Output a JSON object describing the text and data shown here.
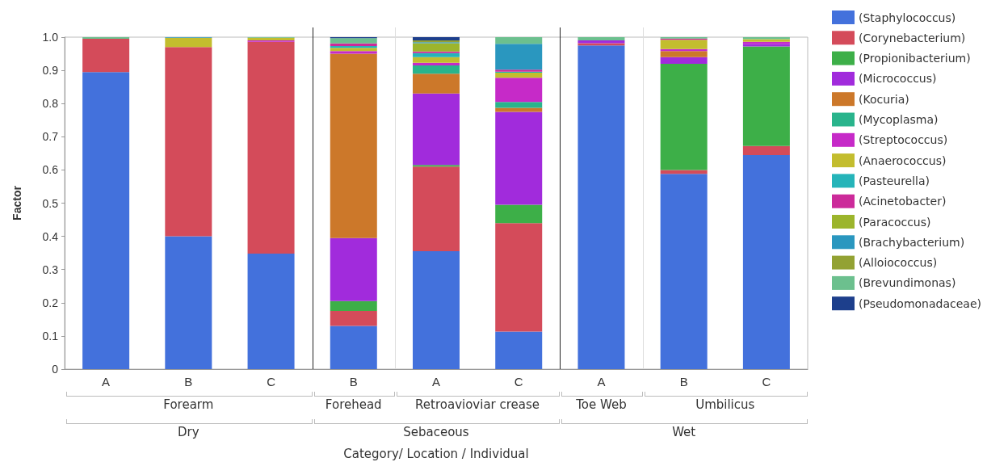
{
  "chart_data": {
    "type": "bar",
    "stacked": true,
    "xlabel": "Category/ Location / Individual",
    "ylabel": "Factor",
    "categories": [
      "A",
      "B",
      "C",
      "B",
      "A",
      "C",
      "A",
      "B",
      "C"
    ],
    "annotations": [
      "Forearm",
      "Forehead",
      "Retroavioviar crease",
      "Toe Web",
      "Umbilicus",
      "Dry",
      "Sebaceous",
      "Wet"
    ],
    "ylim": [
      0,
      1
    ],
    "yticks": [
      0,
      0.1,
      0.2,
      0.3,
      0.4,
      0.5,
      0.6,
      0.7,
      0.8,
      0.9,
      {
        "value": 1,
        "label": "1.0"
      }
    ],
    "grid": false,
    "legend": "right",
    "series": [
      {
        "name": "(Staphylococcus)",
        "color": "#4371dc",
        "values": [
          0.895,
          0.4,
          0.348,
          0.13,
          0.355,
          0.113,
          0.975,
          0.588,
          0.645
        ]
      },
      {
        "name": "(Corynebacterium)",
        "color": "#d44b5a",
        "values": [
          0.1,
          0.57,
          0.638,
          0.045,
          0.255,
          0.327,
          0.007,
          0.012,
          0.027
        ]
      },
      {
        "name": "(Propionibacterium)",
        "color": "#3daf48",
        "values": [
          null,
          null,
          null,
          0.03,
          0.005,
          0.055,
          null,
          0.32,
          0.3
        ]
      },
      {
        "name": "(Micrococcus)",
        "color": "#a12bdc",
        "values": [
          null,
          null,
          null,
          0.19,
          0.215,
          0.28,
          0.008,
          0.02,
          0.008
        ]
      },
      {
        "name": "(Kocuria)",
        "color": "#cc782a",
        "values": [
          null,
          null,
          null,
          0.555,
          0.06,
          0.012,
          null,
          0.018,
          null
        ]
      },
      {
        "name": "(Mycoplasma)",
        "color": "#29b48c",
        "values": [
          null,
          null,
          null,
          null,
          0.025,
          0.018,
          null,
          null,
          null
        ]
      },
      {
        "name": "(Streptococcus)",
        "color": "#c62ac8",
        "values": [
          null,
          null,
          0.004,
          0.008,
          0.008,
          0.073,
          null,
          0.006,
          0.006
        ]
      },
      {
        "name": "(Anaerococcus)",
        "color": "#c3bd2e",
        "values": [
          null,
          0.028,
          0.008,
          0.01,
          0.017,
          0.015,
          null,
          0.028,
          0.008
        ]
      },
      {
        "name": "(Pasteurella)",
        "color": "#25b4b9",
        "values": [
          null,
          null,
          null,
          0.005,
          0.012,
          0.003,
          null,
          null,
          null
        ]
      },
      {
        "name": "(Acinetobacter)",
        "color": "#cc2a9a",
        "values": [
          null,
          null,
          null,
          0.008,
          0.005,
          0.006,
          null,
          0.004,
          null
        ]
      },
      {
        "name": "(Paracoccus)",
        "color": "#9cb52c",
        "values": [
          null,
          null,
          null,
          null,
          0.025,
          null,
          null,
          null,
          null
        ]
      },
      {
        "name": "(Brachybacterium)",
        "color": "#2a97bf",
        "values": [
          null,
          0.002,
          null,
          null,
          0.003,
          0.078,
          null,
          null,
          null
        ]
      },
      {
        "name": "(Alloiococcus)",
        "color": "#93a233",
        "values": [
          null,
          null,
          null,
          null,
          0.005,
          null,
          null,
          null,
          null
        ]
      },
      {
        "name": "(Brevundimonas)",
        "color": "#6cc08e",
        "values": [
          0.005,
          null,
          0.002,
          0.016,
          null,
          0.02,
          0.01,
          0.004,
          0.006
        ]
      },
      {
        "name": "(Pseudomonadaceae)",
        "color": "#1d3f8c",
        "values": [
          null,
          null,
          null,
          0.003,
          0.01,
          null,
          null,
          null,
          null
        ]
      }
    ]
  }
}
